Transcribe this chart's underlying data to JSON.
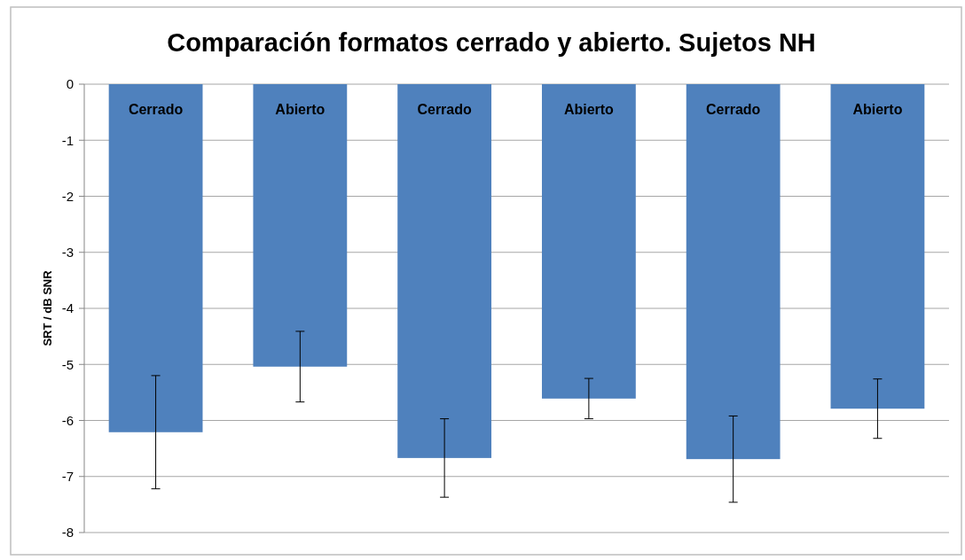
{
  "chart_data": {
    "type": "bar",
    "title": "Comparación formatos cerrado y abierto. Sujetos NH",
    "ylabel": "SRT / dB SNR",
    "categories": [
      "Cerrado",
      "Abierto",
      "Cerrado",
      "Abierto",
      "Cerrado",
      "Abierto"
    ],
    "values": [
      -6.21,
      -5.04,
      -6.67,
      -5.61,
      -6.69,
      -5.79
    ],
    "errors": [
      1.01,
      0.63,
      0.7,
      0.36,
      0.77,
      0.53
    ],
    "color": "#4f81bd",
    "ylim": [
      -8,
      0
    ],
    "yticks": [
      0,
      -1,
      -2,
      -3,
      -4,
      -5,
      -6,
      -7,
      -8
    ],
    "grid": "y"
  }
}
